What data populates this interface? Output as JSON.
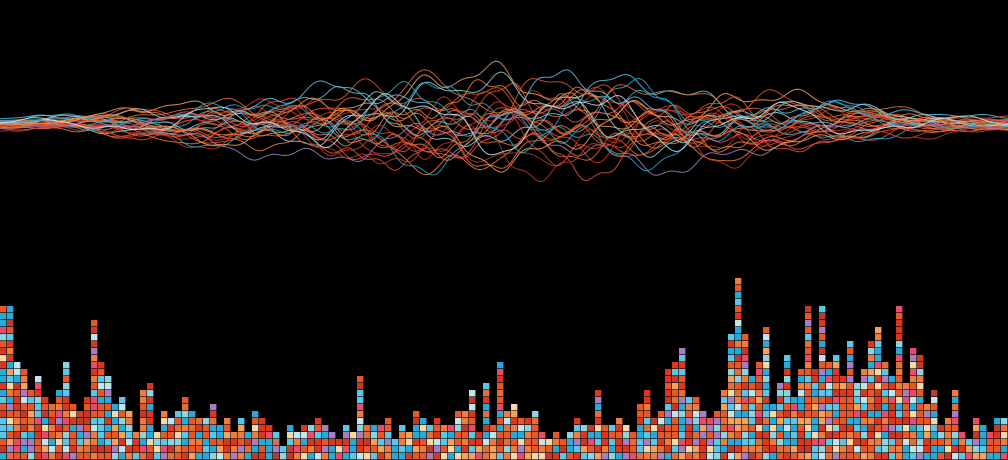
{
  "artwork": {
    "background": "#000000",
    "palette": [
      "#e8572a",
      "#f07b3f",
      "#d9381e",
      "#c0392b",
      "#29a9d6",
      "#5cc6e6",
      "#8fd3e0",
      "#bfe6ee",
      "#f2a25c",
      "#e0703a",
      "#a77fc1",
      "#e84c6b",
      "#f6d7a7",
      "#ffffff"
    ],
    "waves": {
      "line_count": 30
    },
    "mosaic": {
      "column_count": 144,
      "column_heights_tiles": [
        22,
        22,
        14,
        13,
        10,
        12,
        9,
        8,
        10,
        14,
        8,
        7,
        9,
        20,
        14,
        12,
        8,
        9,
        7,
        4,
        10,
        11,
        4,
        7,
        6,
        7,
        9,
        7,
        6,
        6,
        8,
        5,
        6,
        4,
        6,
        4,
        7,
        6,
        5,
        4,
        2,
        5,
        4,
        5,
        5,
        6,
        5,
        4,
        3,
        5,
        4,
        12,
        5,
        5,
        5,
        6,
        3,
        5,
        4,
        7,
        6,
        5,
        6,
        5,
        5,
        7,
        7,
        10,
        4,
        11,
        5,
        14,
        7,
        8,
        6,
        6,
        7,
        4,
        3,
        4,
        3,
        4,
        6,
        5,
        5,
        10,
        5,
        5,
        6,
        5,
        4,
        8,
        10,
        6,
        7,
        13,
        14,
        16,
        9,
        9,
        7,
        6,
        7,
        10,
        18,
        26,
        18,
        12,
        14,
        19,
        8,
        11,
        15,
        9,
        13,
        22,
        13,
        22,
        14,
        15,
        12,
        17,
        11,
        13,
        17,
        19,
        14,
        12,
        22,
        11,
        16,
        15,
        8,
        10,
        5,
        6,
        10,
        4,
        3,
        6,
        5,
        4,
        6,
        6
      ]
    }
  }
}
